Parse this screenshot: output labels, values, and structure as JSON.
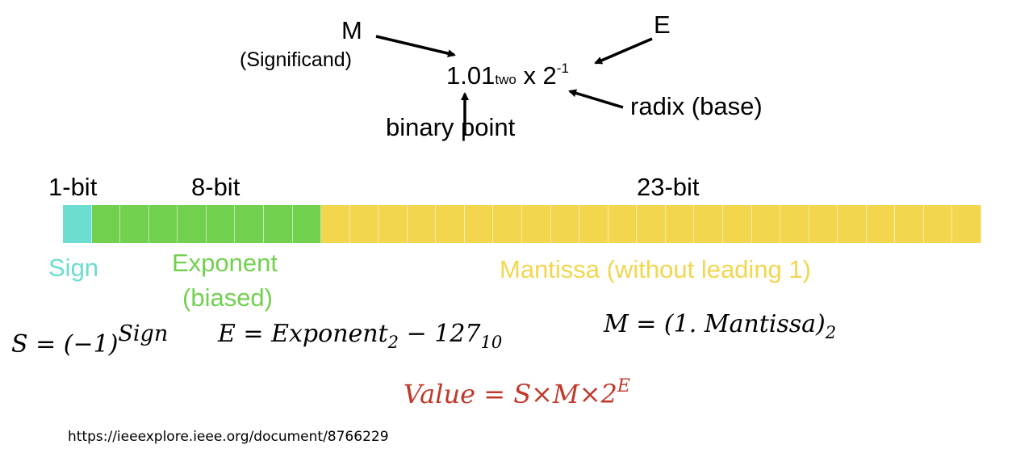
{
  "top_formula": {
    "m_label": "M",
    "significand_label": "(Significand)",
    "number": "1.01",
    "number_subscript": "two",
    "times": "x 2",
    "exponent": "-1",
    "e_label": "E",
    "radix_label": "radix (base)",
    "binary_point_label": "binary point"
  },
  "bit_layout": {
    "sign_bits_label": "1-bit",
    "exponent_bits_label": "8-bit",
    "mantissa_bits_label": "23-bit",
    "sign_bits": 1,
    "exponent_bits": 8,
    "mantissa_bits": 23,
    "sign_label": "Sign",
    "exponent_label_line1": "Exponent",
    "exponent_label_line2": "(biased)",
    "mantissa_label": "Mantissa (without leading 1)",
    "colors": {
      "sign": "#6ddcd0",
      "exponent": "#72d04f",
      "mantissa": "#f2d64e",
      "value_formula": "#c0392b"
    }
  },
  "formulas": {
    "s_lhs": "S = (−1)",
    "s_sup": "Sign",
    "e_lhs": "E = Exponent",
    "e_sub": "2",
    "e_minus": " − 127",
    "e_sub2": "10",
    "m_lhs": "M = (1. Mantissa)",
    "m_sub": "2",
    "value_lhs": "Value = S×M×2",
    "value_sup": "E"
  },
  "reference_url": "https://ieeexplore.ieee.org/document/8766229"
}
